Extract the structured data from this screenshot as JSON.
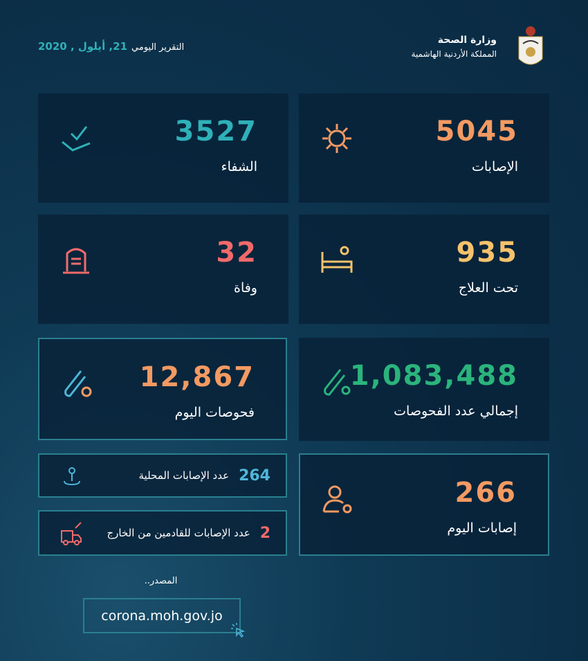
{
  "header": {
    "ministry": "وزارة الصحة",
    "kingdom": "المملكة الأردنية الهاشمية",
    "report_label": "التقرير اليومي",
    "date": "21, أيلول , 2020"
  },
  "stats": {
    "cases": {
      "value": "5045",
      "label": "الإصابات",
      "color": "#f39a62"
    },
    "recovered": {
      "value": "3527",
      "label": "الشفاء",
      "color": "#2fb0b8"
    },
    "under_treatment": {
      "value": "935",
      "label": "تحت العلاج",
      "color": "#f5c26b"
    },
    "deaths": {
      "value": "32",
      "label": "وفاة",
      "color": "#f06a6a"
    },
    "total_tests": {
      "value": "1,083,488",
      "label": "إجمالي عدد الفحوصات",
      "color": "#2bb47c"
    },
    "tests_today": {
      "value": "12,867",
      "label": "فحوصات اليوم",
      "color": "#f39a62"
    },
    "cases_today": {
      "value": "266",
      "label": "إصابات اليوم",
      "color": "#f39a62"
    },
    "local_cases": {
      "value": "264",
      "label": "عدد الإصابات المحلية",
      "color": "#4fb6d8"
    },
    "imported_cases": {
      "value": "2",
      "label": "عدد الإصابات للقادمين من الخارج",
      "color": "#f06a6a"
    }
  },
  "source": {
    "label": "المصدر..",
    "url": "corona.moh.gov.jo"
  }
}
